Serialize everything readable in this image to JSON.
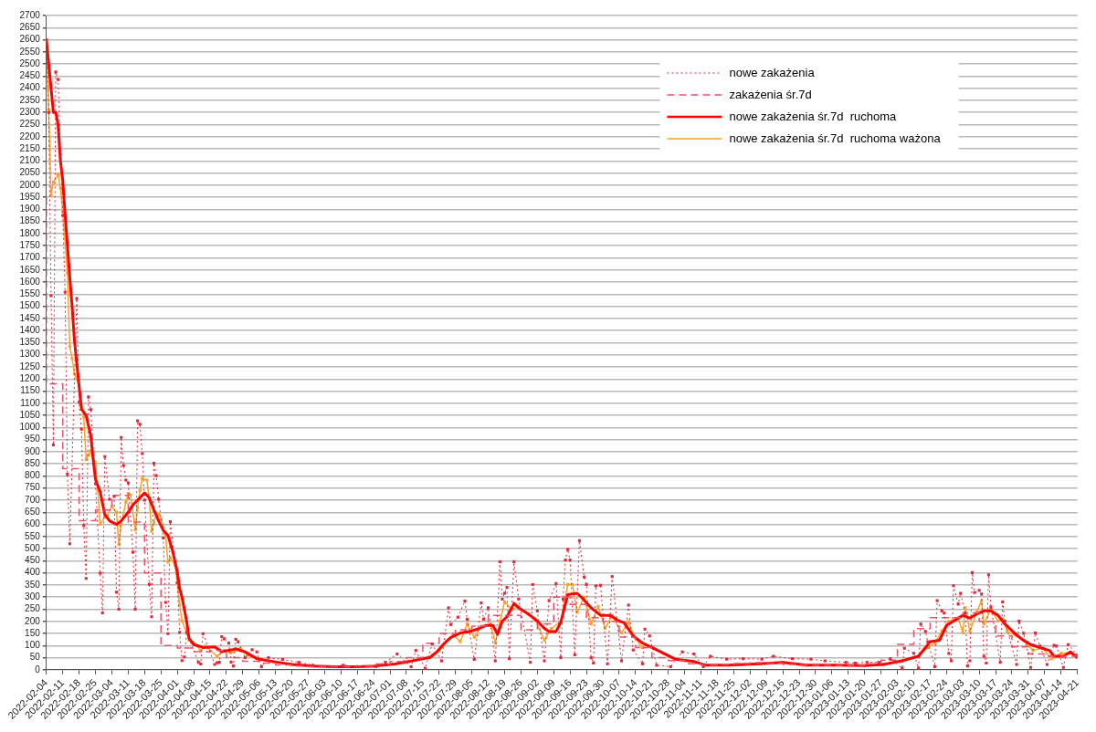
{
  "chart_data": {
    "type": "line",
    "xlim": [
      "2022-02-04",
      "2023-04-21"
    ],
    "xticks": [
      "2022-02-04",
      "2022-02-11",
      "2022-02-18",
      "2022-02-25",
      "2022-03-04",
      "2022-03-11",
      "2022-03-18",
      "2022-03-25",
      "2022-04-01",
      "2022-04-08",
      "2022-04-15",
      "2022-04-22",
      "2022-04-29",
      "2022-05-06",
      "2022-05-13",
      "2022-05-20",
      "2022-05-27",
      "2022-06-03",
      "2022-06-10",
      "2022-06-17",
      "2022-06-24",
      "2022-07-01",
      "2022-07-08",
      "2022-07-15",
      "2022-07-22",
      "2022-07-29",
      "2022-08-05",
      "2022-08-12",
      "2022-08-19",
      "2022-08-26",
      "2022-09-02",
      "2022-09-09",
      "2022-09-16",
      "2022-09-23",
      "2022-09-30",
      "2022-10-07",
      "2022-10-14",
      "2022-10-21",
      "2022-10-28",
      "2022-11-04",
      "2022-11-11",
      "2022-11-18",
      "2022-11-25",
      "2022-12-02",
      "2022-12-09",
      "2022-12-16",
      "2022-12-23",
      "2022-12-30",
      "2023-01-06",
      "2023-01-13",
      "2023-01-20",
      "2023-01-27",
      "2023-02-03",
      "2023-02-10",
      "2023-02-17",
      "2023-02-24",
      "2023-03-03",
      "2023-03-10",
      "2023-03-17",
      "2023-03-24",
      "2023-03-31",
      "2023-04-07",
      "2023-04-14",
      "2023-04-21"
    ],
    "ylim": [
      0,
      2700
    ],
    "yticks": [
      0,
      50,
      100,
      150,
      200,
      250,
      300,
      350,
      400,
      450,
      500,
      550,
      600,
      650,
      700,
      750,
      800,
      850,
      900,
      950,
      1000,
      1050,
      1100,
      1150,
      1200,
      1250,
      1300,
      1350,
      1400,
      1450,
      1500,
      1550,
      1600,
      1650,
      1700,
      1750,
      1800,
      1850,
      1900,
      1950,
      2000,
      2050,
      2100,
      2150,
      2200,
      2250,
      2300,
      2350,
      2400,
      2450,
      2500,
      2550,
      2600,
      2650,
      2700
    ],
    "grid": "y",
    "legend": "top right",
    "series": [
      {
        "name": "nowe zakażenia",
        "type": "line",
        "color": "#e0283c",
        "marker": "square",
        "line_style": "dotted",
        "x": [
          "2022-02-04",
          "2022-02-05",
          "2022-02-06",
          "2022-02-07",
          "2022-02-08",
          "2022-02-09",
          "2022-02-11",
          "2022-02-12",
          "2022-02-13",
          "2022-02-14",
          "2022-02-17",
          "2022-02-18",
          "2022-02-19",
          "2022-02-20",
          "2022-02-21",
          "2022-02-22",
          "2022-02-23",
          "2022-02-25",
          "2022-02-27",
          "2022-02-28",
          "2022-03-01",
          "2022-03-03",
          "2022-03-05",
          "2022-03-06",
          "2022-03-07",
          "2022-03-08",
          "2022-03-09",
          "2022-03-10",
          "2022-03-11",
          "2022-03-13",
          "2022-03-14",
          "2022-03-15",
          "2022-03-16",
          "2022-03-17",
          "2022-03-18",
          "2022-03-20",
          "2022-03-21",
          "2022-03-22",
          "2022-03-23",
          "2022-03-24",
          "2022-03-26",
          "2022-03-27",
          "2022-03-28",
          "2022-03-29",
          "2022-04-01",
          "2022-04-02",
          "2022-04-03",
          "2022-04-04",
          "2022-04-05",
          "2022-04-10",
          "2022-04-11",
          "2022-04-12",
          "2022-04-17",
          "2022-04-18",
          "2022-04-19",
          "2022-04-20",
          "2022-04-21",
          "2022-04-23",
          "2022-04-24",
          "2022-04-25",
          "2022-04-26",
          "2022-04-27",
          "2022-04-30",
          "2022-05-03",
          "2022-05-05",
          "2022-05-07",
          "2022-05-10",
          "2022-05-16",
          "2022-05-23",
          "2022-05-29",
          "2022-06-05",
          "2022-06-11",
          "2022-06-17",
          "2022-06-25",
          "2022-06-29",
          "2022-07-04",
          "2022-07-08",
          "2022-07-10",
          "2022-07-12",
          "2022-07-16",
          "2022-07-19",
          "2022-07-23",
          "2022-07-26",
          "2022-07-27",
          "2022-07-30",
          "2022-08-02",
          "2022-08-03",
          "2022-08-06",
          "2022-08-09",
          "2022-08-10",
          "2022-08-12",
          "2022-08-15",
          "2022-08-17",
          "2022-08-18",
          "2022-08-19",
          "2022-08-20",
          "2022-08-21",
          "2022-08-23",
          "2022-08-25",
          "2022-08-30",
          "2022-08-31",
          "2022-09-02",
          "2022-09-05",
          "2022-09-07",
          "2022-09-10",
          "2022-09-12",
          "2022-09-13",
          "2022-09-14",
          "2022-09-15",
          "2022-09-16",
          "2022-09-18",
          "2022-09-20",
          "2022-09-22",
          "2022-09-23",
          "2022-09-25",
          "2022-09-26",
          "2022-09-27",
          "2022-09-29",
          "2022-10-02",
          "2022-10-04",
          "2022-10-08",
          "2022-10-11",
          "2022-10-13",
          "2022-10-17",
          "2022-10-18",
          "2022-10-20",
          "2022-10-23",
          "2022-10-29",
          "2022-11-03",
          "2022-11-08",
          "2022-11-12",
          "2022-11-15",
          "2022-11-22",
          "2022-11-29",
          "2022-12-07",
          "2022-12-12",
          "2022-12-20",
          "2022-12-28",
          "2023-01-03",
          "2023-01-12",
          "2023-01-16",
          "2023-01-21",
          "2023-01-26",
          "2023-01-31",
          "2023-02-05",
          "2023-02-06",
          "2023-02-10",
          "2023-02-12",
          "2023-02-13",
          "2023-02-15",
          "2023-02-16",
          "2023-02-19",
          "2023-02-20",
          "2023-02-22",
          "2023-02-23",
          "2023-02-25",
          "2023-02-26",
          "2023-02-27",
          "2023-03-01",
          "2023-03-02",
          "2023-03-04",
          "2023-03-05",
          "2023-03-06",
          "2023-03-07",
          "2023-03-08",
          "2023-03-10",
          "2023-03-11",
          "2023-03-12",
          "2023-03-13",
          "2023-03-14",
          "2023-03-15",
          "2023-03-19",
          "2023-03-20",
          "2023-03-21",
          "2023-03-26",
          "2023-03-27",
          "2023-03-29",
          "2023-04-01",
          "2023-04-03",
          "2023-04-05",
          "2023-04-08",
          "2023-04-11",
          "2023-04-12",
          "2023-04-15",
          "2023-04-17",
          "2023-04-21"
        ],
        "values": [
          2600,
          2300,
          1544,
          928,
          2467,
          2436,
          1875,
          1559,
          807,
          520,
          1532,
          1104,
          993,
          595,
          377,
          1126,
          1074,
          768,
          399,
          235,
          880,
          704,
          715,
          320,
          250,
          959,
          843,
          783,
          771,
          486,
          250,
          1028,
          1013,
          892,
          700,
          353,
          219,
          852,
          801,
          704,
          544,
          278,
          149,
          611,
          359,
          155,
          38,
          53,
          155,
          31,
          24,
          149,
          22,
          29,
          31,
          137,
          128,
          110,
          32,
          16,
          126,
          116,
          50,
          83,
          74,
          13,
          50,
          43,
          31,
          19,
          13,
          19,
          13,
          13,
          31,
          65,
          31,
          13,
          80,
          5,
          107,
          37,
          256,
          187,
          217,
          284,
          209,
          43,
          276,
          209,
          256,
          37,
          446,
          292,
          316,
          340,
          46,
          446,
          292,
          31,
          352,
          243,
          37,
          286,
          356,
          50,
          292,
          453,
          497,
          453,
          62,
          533,
          383,
          352,
          50,
          28,
          346,
          349,
          25,
          385,
          37,
          267,
          82,
          25,
          168,
          140,
          19,
          13,
          74,
          65,
          13,
          56,
          44,
          46,
          44,
          56,
          46,
          44,
          37,
          31,
          28,
          31,
          31,
          46,
          7,
          89,
          68,
          7,
          189,
          158,
          116,
          13,
          286,
          243,
          234,
          68,
          37,
          347,
          271,
          316,
          234,
          16,
          37,
          401,
          319,
          328,
          313,
          56,
          28,
          392,
          259,
          31,
          280,
          201,
          22,
          201,
          150,
          10,
          152,
          98,
          22,
          101,
          98,
          10,
          104,
          62
        ]
      },
      {
        "name": "zakażenia śr.7d",
        "type": "step",
        "color": "#f0506e",
        "marker": "none",
        "line_style": "dashed",
        "x": [
          "2022-02-04",
          "2022-02-11",
          "2022-02-18",
          "2022-02-25",
          "2022-03-04",
          "2022-03-11",
          "2022-03-18",
          "2022-03-25",
          "2022-04-01",
          "2022-04-08",
          "2022-04-15",
          "2022-04-22",
          "2022-04-29",
          "2022-05-06",
          "2022-05-13",
          "2022-05-20",
          "2022-05-27",
          "2022-06-03",
          "2022-06-10",
          "2022-06-17",
          "2022-06-24",
          "2022-07-01",
          "2022-07-08",
          "2022-07-15",
          "2022-07-22",
          "2022-07-29",
          "2022-08-05",
          "2022-08-12",
          "2022-08-19",
          "2022-08-26",
          "2022-09-02",
          "2022-09-09",
          "2022-09-16",
          "2022-09-23",
          "2022-09-30",
          "2022-10-07",
          "2022-10-14",
          "2022-10-21",
          "2022-10-28",
          "2022-11-04",
          "2022-11-11",
          "2022-11-18",
          "2022-11-25",
          "2022-12-02",
          "2022-12-09",
          "2022-12-16",
          "2022-12-23",
          "2022-12-30",
          "2023-01-06",
          "2023-01-13",
          "2023-01-20",
          "2023-01-27",
          "2023-02-03",
          "2023-02-10",
          "2023-02-17",
          "2023-02-24",
          "2023-03-03",
          "2023-03-10",
          "2023-03-17",
          "2023-03-24",
          "2023-03-31",
          "2023-04-07",
          "2023-04-14",
          "2023-04-21"
        ],
        "values": [
          1950,
          1180,
          830,
          615,
          660,
          720,
          610,
          400,
          100,
          90,
          75,
          80,
          50,
          35,
          28,
          20,
          16,
          13,
          13,
          13,
          16,
          24,
          34,
          50,
          110,
          150,
          165,
          180,
          225,
          225,
          165,
          190,
          300,
          270,
          215,
          200,
          135,
          92,
          50,
          38,
          25,
          20,
          22,
          26,
          30,
          28,
          22,
          19,
          19,
          17,
          18,
          25,
          40,
          105,
          170,
          215,
          215,
          235,
          200,
          140,
          95,
          65,
          56,
          56
        ]
      },
      {
        "name": "nowe zakażenia śr.7d  ruchoma",
        "type": "line",
        "color": "#ff0000",
        "marker": "none",
        "line_style": "solid",
        "x": [
          "2022-02-04",
          "2022-02-06",
          "2022-02-07",
          "2022-02-08",
          "2022-02-09",
          "2022-02-10",
          "2022-02-11",
          "2022-02-12",
          "2022-02-13",
          "2022-02-14",
          "2022-02-15",
          "2022-02-16",
          "2022-02-18",
          "2022-02-19",
          "2022-02-21",
          "2022-02-23",
          "2022-02-24",
          "2022-02-25",
          "2022-02-27",
          "2022-03-01",
          "2022-03-03",
          "2022-03-06",
          "2022-03-08",
          "2022-03-11",
          "2022-03-13",
          "2022-03-16",
          "2022-03-18",
          "2022-03-20",
          "2022-03-22",
          "2022-03-24",
          "2022-03-26",
          "2022-03-28",
          "2022-03-30",
          "2022-04-01",
          "2022-04-02",
          "2022-04-03",
          "2022-04-05",
          "2022-04-06",
          "2022-04-08",
          "2022-04-12",
          "2022-04-17",
          "2022-04-20",
          "2022-04-26",
          "2022-04-30",
          "2022-05-05",
          "2022-05-12",
          "2022-05-20",
          "2022-05-29",
          "2022-06-07",
          "2022-06-17",
          "2022-06-25",
          "2022-07-03",
          "2022-07-09",
          "2022-07-15",
          "2022-07-18",
          "2022-07-21",
          "2022-07-24",
          "2022-07-27",
          "2022-07-31",
          "2022-08-04",
          "2022-08-08",
          "2022-08-11",
          "2022-08-14",
          "2022-08-16",
          "2022-08-18",
          "2022-08-20",
          "2022-08-23",
          "2022-08-25",
          "2022-08-29",
          "2022-09-02",
          "2022-09-05",
          "2022-09-07",
          "2022-09-10",
          "2022-09-12",
          "2022-09-15",
          "2022-09-19",
          "2022-09-21",
          "2022-09-25",
          "2022-09-29",
          "2022-10-03",
          "2022-10-07",
          "2022-10-09",
          "2022-10-13",
          "2022-10-17",
          "2022-10-21",
          "2022-10-26",
          "2022-10-31",
          "2022-11-08",
          "2022-11-13",
          "2022-11-23",
          "2022-12-06",
          "2022-12-16",
          "2022-12-26",
          "2023-01-07",
          "2023-01-20",
          "2023-01-28",
          "2023-02-05",
          "2023-02-12",
          "2023-02-17",
          "2023-02-21",
          "2023-02-24",
          "2023-02-28",
          "2023-03-03",
          "2023-03-06",
          "2023-03-09",
          "2023-03-12",
          "2023-03-15",
          "2023-03-18",
          "2023-03-21",
          "2023-03-25",
          "2023-03-28",
          "2023-04-01",
          "2023-04-05",
          "2023-04-09",
          "2023-04-11",
          "2023-04-15",
          "2023-04-18",
          "2023-04-21"
        ],
        "values": [
          2600,
          2400,
          2300,
          2300,
          2250,
          2100,
          2020,
          1880,
          1750,
          1620,
          1500,
          1360,
          1170,
          1075,
          1050,
          965,
          870,
          785,
          735,
          640,
          615,
          600,
          615,
          650,
          680,
          710,
          730,
          710,
          660,
          615,
          575,
          555,
          490,
          405,
          335,
          300,
          200,
          130,
          105,
          92,
          95,
          75,
          86,
          74,
          46,
          34,
          22,
          16,
          13,
          13,
          16,
          24,
          34,
          46,
          50,
          74,
          107,
          134,
          152,
          158,
          170,
          183,
          183,
          146,
          201,
          219,
          274,
          256,
          231,
          201,
          171,
          158,
          158,
          195,
          310,
          316,
          298,
          256,
          225,
          225,
          201,
          195,
          140,
          110,
          92,
          68,
          44,
          34,
          19,
          19,
          25,
          31,
          19,
          19,
          17,
          22,
          37,
          56,
          116,
          122,
          183,
          207,
          225,
          213,
          231,
          243,
          243,
          225,
          189,
          152,
          128,
          104,
          92,
          80,
          56,
          56,
          74,
          50
        ]
      },
      {
        "name": "nowe zakażenia śr.7d  ruchoma ważona",
        "type": "line",
        "color": "#ffa020",
        "marker": "square",
        "line_style": "solid",
        "x": [
          "2022-02-04",
          "2022-02-05",
          "2022-02-06",
          "2022-02-07",
          "2022-02-09",
          "2022-02-10",
          "2022-02-11",
          "2022-02-13",
          "2022-02-14",
          "2022-02-15",
          "2022-02-16",
          "2022-02-18",
          "2022-02-20",
          "2022-02-21",
          "2022-02-22",
          "2022-02-23",
          "2022-02-25",
          "2022-02-26",
          "2022-02-27",
          "2022-03-01",
          "2022-03-02",
          "2022-03-04",
          "2022-03-06",
          "2022-03-07",
          "2022-03-08",
          "2022-03-10",
          "2022-03-11",
          "2022-03-12",
          "2022-03-14",
          "2022-03-15",
          "2022-03-16",
          "2022-03-17",
          "2022-03-19",
          "2022-03-20",
          "2022-03-21",
          "2022-03-22",
          "2022-03-23",
          "2022-03-24",
          "2022-03-25",
          "2022-03-27",
          "2022-03-28",
          "2022-03-29",
          "2022-03-31",
          "2022-04-01",
          "2022-04-02",
          "2022-04-03",
          "2022-04-05",
          "2022-04-06",
          "2022-04-08",
          "2022-04-11",
          "2022-04-13",
          "2022-04-18",
          "2022-04-21",
          "2022-04-24",
          "2022-04-28",
          "2022-05-01",
          "2022-05-06",
          "2022-05-12",
          "2022-05-20",
          "2022-05-29",
          "2022-06-07",
          "2022-06-17",
          "2022-06-25",
          "2022-07-03",
          "2022-07-09",
          "2022-07-15",
          "2022-07-19",
          "2022-07-22",
          "2022-07-24",
          "2022-07-28",
          "2022-07-31",
          "2022-08-03",
          "2022-08-06",
          "2022-08-09",
          "2022-08-13",
          "2022-08-15",
          "2022-08-17",
          "2022-08-19",
          "2022-08-22",
          "2022-08-25",
          "2022-08-29",
          "2022-09-01",
          "2022-09-05",
          "2022-09-08",
          "2022-09-12",
          "2022-09-15",
          "2022-09-17",
          "2022-09-19",
          "2022-09-22",
          "2022-09-25",
          "2022-09-28",
          "2022-10-01",
          "2022-10-04",
          "2022-10-08",
          "2022-10-11",
          "2022-10-13",
          "2022-10-17",
          "2022-10-21",
          "2022-10-26",
          "2022-10-31",
          "2022-11-08",
          "2022-11-13",
          "2022-11-23",
          "2022-12-06",
          "2022-12-16",
          "2022-12-26",
          "2023-01-07",
          "2023-01-20",
          "2023-01-28",
          "2023-02-05",
          "2023-02-12",
          "2023-02-16",
          "2023-02-19",
          "2023-02-22",
          "2023-02-25",
          "2023-03-01",
          "2023-03-03",
          "2023-03-04",
          "2023-03-06",
          "2023-03-09",
          "2023-03-11",
          "2023-03-12",
          "2023-03-15",
          "2023-03-18",
          "2023-03-20",
          "2023-03-22",
          "2023-03-26",
          "2023-03-29",
          "2023-04-02",
          "2023-04-06",
          "2023-04-10",
          "2023-04-14",
          "2023-04-18",
          "2023-04-21"
        ],
        "values": [
          2600,
          2310,
          1958,
          2013,
          2043,
          1988,
          1890,
          1637,
          1334,
          1285,
          1221,
          1170,
          1043,
          868,
          886,
          904,
          855,
          740,
          601,
          631,
          637,
          674,
          650,
          517,
          601,
          692,
          728,
          722,
          577,
          668,
          740,
          789,
          783,
          704,
          571,
          607,
          643,
          643,
          625,
          553,
          444,
          462,
          432,
          359,
          268,
          201,
          153,
          122,
          110,
          80,
          98,
          56,
          80,
          70,
          88,
          60,
          45,
          34,
          22,
          16,
          13,
          13,
          16,
          24,
          36,
          48,
          60,
          79,
          104,
          145,
          116,
          189,
          134,
          180,
          190,
          110,
          200,
          280,
          250,
          260,
          230,
          210,
          122,
          170,
          200,
          352,
          352,
          237,
          300,
          189,
          262,
          171,
          225,
          152,
          200,
          140,
          92,
          95,
          68,
          44,
          34,
          19,
          19,
          25,
          31,
          19,
          19,
          17,
          22,
          37,
          56,
          92,
          110,
          160,
          200,
          215,
          152,
          256,
          158,
          240,
          286,
          189,
          250,
          201,
          210,
          158,
          140,
          120,
          80,
          90,
          46,
          68,
          70,
          50
        ]
      }
    ]
  }
}
